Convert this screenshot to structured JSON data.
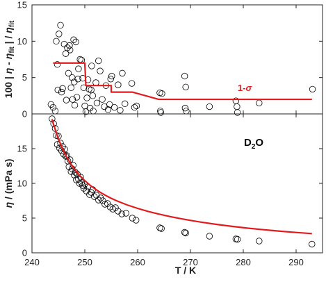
{
  "chart_data": [
    {
      "type": "scatter",
      "panel": "top",
      "ylabel": "100 | η - η_fit | / η_fit",
      "ylabel_parts": [
        "100 | ",
        "η",
        " - ",
        "η",
        "fit",
        " | / ",
        "η",
        "fit"
      ],
      "xlim": [
        240,
        295
      ],
      "ylim": [
        0,
        15
      ],
      "yticks": [
        0,
        5,
        10,
        15
      ],
      "grid": false,
      "annotation": {
        "base": "1-",
        "symbol": "σ"
      },
      "series": [
        {
          "kind": "markers",
          "marker": "open-circle",
          "color": "#000000",
          "points": [
            [
              243.6,
              1.3
            ],
            [
              244.0,
              0.9
            ],
            [
              244.4,
              0.4
            ],
            [
              244.6,
              10.0
            ],
            [
              244.8,
              6.8
            ],
            [
              244.9,
              3.3
            ],
            [
              245.1,
              11.0
            ],
            [
              245.4,
              12.2
            ],
            [
              245.6,
              3.0
            ],
            [
              245.8,
              3.5
            ],
            [
              246.1,
              9.6
            ],
            [
              246.4,
              8.3
            ],
            [
              246.5,
              1.9
            ],
            [
              246.7,
              9.1
            ],
            [
              246.9,
              5.6
            ],
            [
              247.1,
              9.4
            ],
            [
              247.2,
              8.8
            ],
            [
              247.4,
              3.6
            ],
            [
              247.6,
              5.0
            ],
            [
              247.7,
              2.0
            ],
            [
              247.9,
              10.2
            ],
            [
              248.0,
              4.4
            ],
            [
              248.1,
              1.2
            ],
            [
              248.3,
              9.9
            ],
            [
              248.5,
              2.3
            ],
            [
              248.7,
              4.8
            ],
            [
              248.8,
              6.2
            ],
            [
              249.1,
              7.5
            ],
            [
              249.4,
              7.4
            ],
            [
              249.6,
              4.9
            ],
            [
              249.8,
              3.6
            ],
            [
              250.0,
              1.1
            ],
            [
              250.2,
              0.3
            ],
            [
              250.4,
              2.2
            ],
            [
              250.6,
              4.7
            ],
            [
              250.8,
              3.4
            ],
            [
              251.0,
              0.8
            ],
            [
              251.2,
              3.3
            ],
            [
              251.3,
              6.6
            ],
            [
              251.5,
              2.5
            ],
            [
              251.6,
              0.4
            ],
            [
              252.1,
              4.3
            ],
            [
              252.3,
              1.5
            ],
            [
              252.6,
              7.3
            ],
            [
              252.9,
              5.9
            ],
            [
              253.3,
              2.0
            ],
            [
              253.7,
              1.0
            ],
            [
              254.0,
              3.9
            ],
            [
              254.4,
              0.6
            ],
            [
              254.7,
              1.3
            ],
            [
              254.9,
              4.8
            ],
            [
              255.1,
              5.2
            ],
            [
              255.6,
              0.9
            ],
            [
              256.3,
              4.0
            ],
            [
              256.7,
              0.5
            ],
            [
              257.1,
              5.6
            ],
            [
              257.6,
              1.4
            ],
            [
              258.9,
              4.2
            ],
            [
              259.4,
              0.9
            ],
            [
              259.8,
              1.1
            ],
            [
              264.2,
              2.9
            ],
            [
              264.3,
              0.4
            ],
            [
              264.4,
              0.2
            ],
            [
              264.6,
              2.8
            ],
            [
              268.9,
              5.2
            ],
            [
              269.0,
              0.8
            ],
            [
              269.1,
              3.7
            ],
            [
              269.2,
              0.4
            ],
            [
              273.6,
              1.0
            ],
            [
              278.6,
              1.8
            ],
            [
              278.8,
              1.0
            ],
            [
              278.9,
              0.2
            ],
            [
              283.0,
              1.5
            ],
            [
              293.1,
              3.4
            ]
          ]
        },
        {
          "kind": "line",
          "name": "1-σ",
          "color": "#e31a1c",
          "points": [
            [
              244,
              7
            ],
            [
              250,
              7
            ],
            [
              250.2,
              3.9
            ],
            [
              251,
              3.9
            ],
            [
              255,
              3.9
            ],
            [
              255,
              3.0
            ],
            [
              259,
              3.0
            ],
            [
              264,
              2.0
            ],
            [
              293,
              2.0
            ]
          ]
        }
      ]
    },
    {
      "type": "scatter",
      "panel": "bottom",
      "xlabel": "T / K",
      "ylabel": "η / (mPa s)",
      "ylabel_parts": [
        "η",
        " / (mPa s)"
      ],
      "xlim": [
        240,
        295
      ],
      "ylim": [
        0,
        20
      ],
      "xticks": [
        240,
        250,
        260,
        270,
        280,
        290
      ],
      "yticks": [
        0,
        5,
        10,
        15
      ],
      "grid": false,
      "annotation": {
        "base": "D",
        "sub": "2",
        "tail": "O"
      },
      "series": [
        {
          "kind": "markers",
          "marker": "open-circle",
          "color": "#000000",
          "points": [
            [
              243.8,
              19.3
            ],
            [
              244.1,
              18.6
            ],
            [
              244.4,
              17.9
            ],
            [
              244.6,
              16.9
            ],
            [
              244.8,
              15.6
            ],
            [
              245.0,
              16.8
            ],
            [
              245.2,
              15.1
            ],
            [
              245.4,
              15.8
            ],
            [
              245.6,
              14.7
            ],
            [
              245.8,
              15.3
            ],
            [
              246.0,
              14.2
            ],
            [
              246.2,
              14.9
            ],
            [
              246.4,
              13.9
            ],
            [
              246.6,
              14.0
            ],
            [
              246.8,
              13.2
            ],
            [
              247.0,
              12.4
            ],
            [
              247.2,
              13.4
            ],
            [
              247.4,
              11.7
            ],
            [
              247.6,
              12.1
            ],
            [
              247.8,
              12.6
            ],
            [
              248.0,
              11.2
            ],
            [
              248.2,
              11.6
            ],
            [
              248.4,
              10.5
            ],
            [
              248.6,
              11.3
            ],
            [
              248.8,
              10.6
            ],
            [
              249.0,
              10.0
            ],
            [
              249.2,
              10.9
            ],
            [
              249.4,
              10.1
            ],
            [
              249.6,
              9.7
            ],
            [
              249.8,
              9.3
            ],
            [
              250.0,
              9.9
            ],
            [
              250.3,
              8.9
            ],
            [
              250.6,
              9.5
            ],
            [
              250.9,
              8.4
            ],
            [
              251.2,
              8.7
            ],
            [
              251.5,
              9.1
            ],
            [
              251.8,
              8.1
            ],
            [
              252.2,
              8.3
            ],
            [
              252.6,
              7.6
            ],
            [
              253.0,
              7.9
            ],
            [
              253.4,
              7.5
            ],
            [
              253.8,
              7.0
            ],
            [
              254.3,
              7.1
            ],
            [
              254.8,
              6.6
            ],
            [
              255.3,
              6.3
            ],
            [
              255.8,
              6.5
            ],
            [
              256.3,
              6.0
            ],
            [
              257.0,
              5.6
            ],
            [
              257.8,
              5.7
            ],
            [
              259.0,
              5.0
            ],
            [
              259.7,
              4.7
            ],
            [
              264.2,
              3.6
            ],
            [
              264.5,
              3.5
            ],
            [
              268.9,
              2.95
            ],
            [
              269.1,
              2.85
            ],
            [
              273.6,
              2.4
            ],
            [
              278.6,
              2.0
            ],
            [
              278.9,
              1.95
            ],
            [
              283.0,
              1.7
            ],
            [
              293.0,
              1.25
            ]
          ]
        },
        {
          "kind": "line",
          "name": "fit",
          "color": "#e31a1c",
          "x": [
            243.8,
            244,
            245,
            246,
            247,
            248,
            249,
            250,
            251,
            252,
            253,
            254,
            255,
            256,
            258,
            260,
            262,
            264,
            266,
            268,
            270,
            272,
            275,
            278,
            281,
            284,
            287,
            290,
            293
          ],
          "y": [
            19.24,
            18.69,
            16.38,
            14.62,
            13.22,
            12.1,
            11.17,
            10.39,
            9.73,
            9.17,
            8.67,
            8.24,
            7.85,
            7.5,
            6.9,
            6.4,
            5.96,
            5.58,
            5.24,
            4.94,
            4.67,
            4.42,
            4.09,
            3.8,
            3.54,
            3.32,
            3.11,
            2.93,
            2.77
          ]
        }
      ]
    }
  ]
}
